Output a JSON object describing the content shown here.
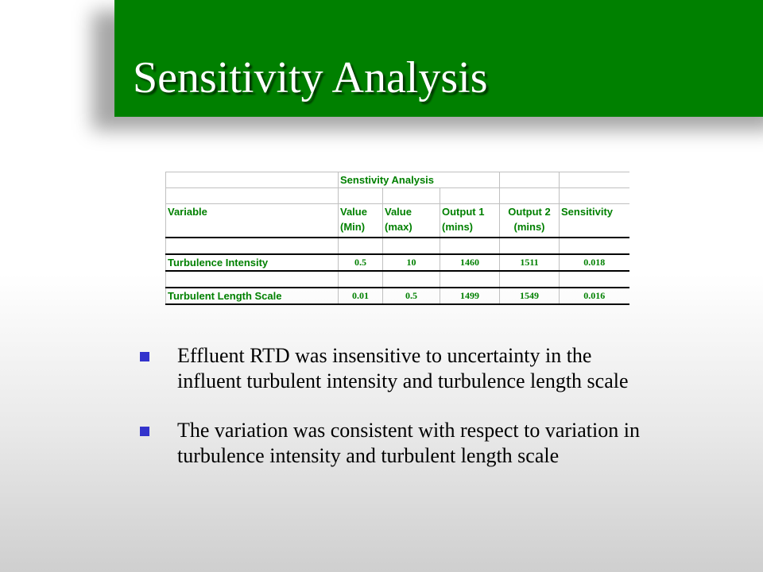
{
  "slide": {
    "title": "Sensitivity Analysis"
  },
  "table": {
    "title": "Senstivity Analysis",
    "headers": {
      "variable": "Variable",
      "value_min": "Value (Min)",
      "value_max": "Value (max)",
      "output1": "Output 1 (mins)",
      "output2": "Output 2 (mins)",
      "sensitivity": "Sensitivity"
    },
    "rows": [
      {
        "variable": "Turbulence Intensity",
        "value_min": "0.5",
        "value_max": "10",
        "output1": "1460",
        "output2": "1511",
        "sensitivity": "0.018"
      },
      {
        "variable": "Turbulent Length Scale",
        "value_min": "0.01",
        "value_max": "0.5",
        "output1": "1499",
        "output2": "1549",
        "sensitivity": "0.016"
      }
    ]
  },
  "bullets": [
    "Effluent RTD was insensitive to uncertainty in the influent turbulent intensity and turbulence length scale",
    "The variation was consistent with respect to variation in turbulence intensity and turbulent length scale"
  ],
  "colors": {
    "title_bar": "#008000",
    "title_text": "#ffffff",
    "table_text": "#008000",
    "bullet_mark": "#3333cc"
  }
}
